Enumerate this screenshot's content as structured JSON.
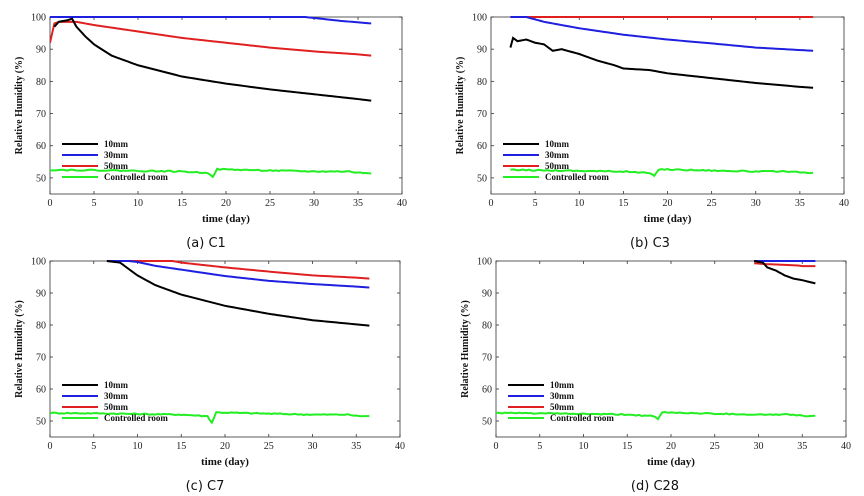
{
  "figure": {
    "series_colors": {
      "10mm": "#000000",
      "30mm": "#1f1fe0",
      "50mm": "#e02020",
      "Controlled room": "#22ee22"
    }
  },
  "chart_data": [
    {
      "type": "line",
      "caption": "(a) C1",
      "xlabel": "time (day)",
      "ylabel": "Relative Humidity (%)",
      "xlim": [
        0,
        40
      ],
      "ylim": [
        45,
        100
      ],
      "xticks": [
        0,
        5,
        10,
        15,
        20,
        25,
        30,
        35,
        40
      ],
      "yticks": [
        50,
        60,
        70,
        80,
        90,
        100
      ],
      "legend": [
        "10mm",
        "30mm",
        "50mm",
        "Controlled room"
      ],
      "series": [
        {
          "name": "10mm",
          "color": "#000000",
          "x": [
            0.5,
            1,
            2,
            2.5,
            3,
            4,
            5,
            7,
            10,
            15,
            20,
            25,
            30,
            35,
            36.5
          ],
          "y": [
            97,
            98.5,
            99,
            99.5,
            97,
            94,
            91.5,
            88,
            85,
            81.5,
            79.3,
            77.5,
            76,
            74.5,
            74
          ]
        },
        {
          "name": "30mm",
          "color": "#1f1fe0",
          "x": [
            0,
            2,
            10,
            20,
            29,
            33,
            36.5
          ],
          "y": [
            100,
            100,
            100,
            100,
            100,
            98.8,
            98
          ]
        },
        {
          "name": "50mm",
          "color": "#e02020",
          "x": [
            0,
            0.5,
            1,
            3,
            5,
            10,
            15,
            20,
            25,
            30,
            35,
            36.5
          ],
          "y": [
            92,
            98,
            98.5,
            98.5,
            97.5,
            95.5,
            93.5,
            92,
            90.5,
            89.3,
            88.4,
            88
          ]
        },
        {
          "name": "Controlled room",
          "color": "#22ee22",
          "x": [
            0,
            5,
            10,
            15,
            18,
            18.5,
            19,
            25,
            30,
            34,
            35,
            36.5
          ],
          "y": [
            52.5,
            52.4,
            52.2,
            52,
            51.5,
            50.5,
            52.7,
            52.3,
            52,
            52,
            51.6,
            51.5
          ]
        }
      ]
    },
    {
      "type": "line",
      "caption": "(b) C3",
      "xlabel": "time (day)",
      "ylabel": "Relative Humidity (%)",
      "xlim": [
        0,
        40
      ],
      "ylim": [
        45,
        100
      ],
      "xticks": [
        0,
        5,
        10,
        15,
        20,
        25,
        30,
        35,
        40
      ],
      "yticks": [
        50,
        60,
        70,
        80,
        90,
        100
      ],
      "legend": [
        "10mm",
        "30mm",
        "50mm",
        "Controlled room"
      ],
      "series": [
        {
          "name": "10mm",
          "color": "#000000",
          "x": [
            2.2,
            2.5,
            3,
            4,
            5,
            6,
            7,
            8,
            10,
            12,
            14,
            15,
            18,
            20,
            25,
            30,
            35,
            36.5
          ],
          "y": [
            90.5,
            93.5,
            92.5,
            93,
            92,
            91.5,
            89.5,
            90,
            88.5,
            86.5,
            85,
            84,
            83.5,
            82.5,
            81,
            79.5,
            78.3,
            78
          ]
        },
        {
          "name": "30mm",
          "color": "#1f1fe0",
          "x": [
            2.2,
            4,
            6,
            10,
            15,
            20,
            25,
            30,
            36.5
          ],
          "y": [
            100,
            100,
            98.5,
            96.5,
            94.5,
            93,
            91.8,
            90.5,
            89.5
          ]
        },
        {
          "name": "50mm",
          "color": "#e02020",
          "x": [
            2.2,
            10,
            20,
            30,
            36.5
          ],
          "y": [
            100,
            100,
            100,
            100,
            100
          ]
        },
        {
          "name": "Controlled room",
          "color": "#22ee22",
          "x": [
            2.2,
            5,
            10,
            15,
            18,
            18.5,
            19,
            25,
            30,
            34,
            35,
            36.5
          ],
          "y": [
            52.5,
            52.4,
            52.2,
            52,
            51.5,
            50.5,
            52.7,
            52.3,
            52,
            52,
            51.6,
            51.5
          ]
        }
      ]
    },
    {
      "type": "line",
      "caption": "(c) C7",
      "xlabel": "time (day)",
      "ylabel": "Relative Humidity (%)",
      "xlim": [
        0,
        40
      ],
      "ylim": [
        45,
        100
      ],
      "xticks": [
        0,
        5,
        10,
        15,
        20,
        25,
        30,
        35,
        40
      ],
      "yticks": [
        50,
        60,
        70,
        80,
        90,
        100
      ],
      "legend": [
        "10mm",
        "30mm",
        "50mm",
        "Controlled room"
      ],
      "series": [
        {
          "name": "10mm",
          "color": "#000000",
          "x": [
            6.5,
            8,
            9,
            10,
            12,
            15,
            20,
            25,
            30,
            35,
            36.5
          ],
          "y": [
            100,
            99.5,
            97.5,
            95.5,
            92.5,
            89.5,
            86,
            83.5,
            81.5,
            80.2,
            79.8
          ]
        },
        {
          "name": "30mm",
          "color": "#1f1fe0",
          "x": [
            6.5,
            9,
            10,
            12,
            15,
            20,
            25,
            30,
            35,
            36.5
          ],
          "y": [
            100,
            100,
            99.7,
            98.5,
            97.3,
            95.3,
            93.8,
            92.8,
            92,
            91.7
          ]
        },
        {
          "name": "50mm",
          "color": "#e02020",
          "x": [
            6.5,
            10,
            14,
            15,
            20,
            25,
            30,
            35,
            36.5
          ],
          "y": [
            100,
            100,
            100,
            99.5,
            98,
            96.7,
            95.5,
            94.8,
            94.5
          ]
        },
        {
          "name": "Controlled room",
          "color": "#22ee22",
          "x": [
            0,
            5,
            10,
            15,
            18,
            18.5,
            19,
            25,
            30,
            34,
            35,
            36.5
          ],
          "y": [
            52.5,
            52.4,
            52.2,
            52,
            51.5,
            49.5,
            52.7,
            52.3,
            52,
            52,
            51.6,
            51.5
          ]
        }
      ]
    },
    {
      "type": "line",
      "caption": "(d) C28",
      "xlabel": "time (day)",
      "ylabel": "Relative Humidity (%)",
      "xlim": [
        0,
        40
      ],
      "ylim": [
        45,
        100
      ],
      "xticks": [
        0,
        5,
        10,
        15,
        20,
        25,
        30,
        35,
        40
      ],
      "yticks": [
        50,
        60,
        70,
        80,
        90,
        100
      ],
      "legend": [
        "10mm",
        "30mm",
        "50mm",
        "Controlled room"
      ],
      "series": [
        {
          "name": "10mm",
          "color": "#000000",
          "x": [
            29.5,
            30.5,
            31,
            32,
            33,
            34,
            35,
            36.5
          ],
          "y": [
            100,
            99.5,
            98,
            97,
            95.5,
            94.5,
            94,
            93
          ]
        },
        {
          "name": "30mm",
          "color": "#1f1fe0",
          "x": [
            29.5,
            32,
            34,
            36.5
          ],
          "y": [
            100,
            100,
            100,
            100
          ]
        },
        {
          "name": "50mm",
          "color": "#e02020",
          "x": [
            29.5,
            31,
            33,
            34.5,
            35,
            36.5
          ],
          "y": [
            99.3,
            99,
            98.8,
            98.6,
            98.4,
            98.4
          ]
        },
        {
          "name": "Controlled room",
          "color": "#22ee22",
          "x": [
            0,
            5,
            10,
            15,
            18,
            18.5,
            19,
            25,
            30,
            34,
            35,
            36.5
          ],
          "y": [
            52.5,
            52.4,
            52.2,
            52,
            51.5,
            50.5,
            52.7,
            52.3,
            52,
            52,
            51.6,
            51.5
          ]
        }
      ]
    }
  ]
}
